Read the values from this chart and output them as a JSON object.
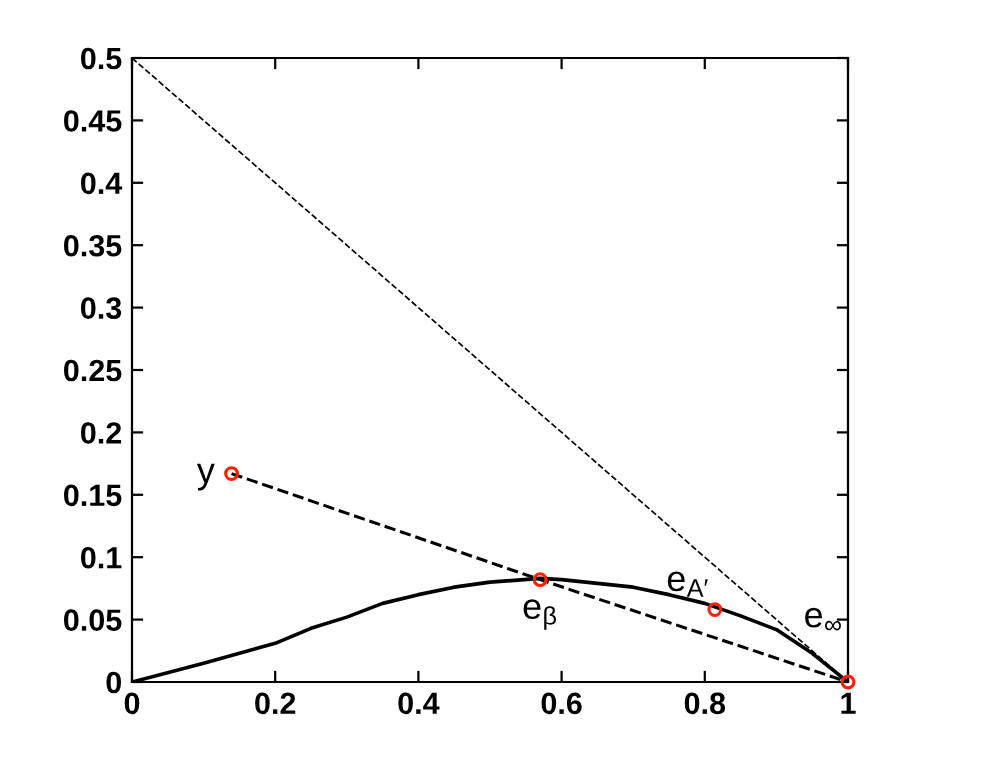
{
  "chart_data": {
    "type": "line",
    "xlim": [
      0,
      1
    ],
    "ylim": [
      0,
      0.5
    ],
    "xticks": [
      0,
      0.2,
      0.4,
      0.6,
      0.8,
      1
    ],
    "yticks": [
      0,
      0.05,
      0.1,
      0.15,
      0.2,
      0.25,
      0.3,
      0.35,
      0.4,
      0.45,
      0.5
    ],
    "grid": false,
    "legend": false,
    "series": [
      {
        "color": "#000000",
        "line_style": "solid",
        "marker": "none",
        "x": [
          0,
          0.1,
          0.2,
          0.25,
          0.3,
          0.35,
          0.4,
          0.45,
          0.5,
          0.57,
          0.6,
          0.65,
          0.7,
          0.75,
          0.8,
          0.85,
          0.9,
          0.95,
          1
        ],
        "values": [
          0,
          0.015,
          0.031,
          0.043,
          0.052,
          0.063,
          0.07,
          0.076,
          0.08,
          0.083,
          0.082,
          0.079,
          0.076,
          0.07,
          0.063,
          0.053,
          0.042,
          0.023,
          0
        ]
      },
      {
        "color": "#000000",
        "line_style": "dashed",
        "marker": "none",
        "x": [
          0.139,
          0.57,
          1
        ],
        "values": [
          0.167,
          0.082,
          0
        ]
      },
      {
        "color": "#000000",
        "line_style": "dashed",
        "marker": "none",
        "x": [
          0,
          1
        ],
        "values": [
          0.5,
          0
        ]
      },
      {
        "type": "scatter",
        "color": "#ff2000",
        "marker": "circle",
        "x": [
          0.139,
          0.57,
          0.814,
          1
        ],
        "values": [
          0.167,
          0.082,
          0.058,
          0
        ]
      }
    ],
    "annotations": [
      {
        "text": "y",
        "x": 0.139,
        "y": 0.167
      },
      {
        "text": "e$_{β}$",
        "x": 0.57,
        "y": 0.082
      },
      {
        "text": "e$_{A′}$",
        "x": 0.814,
        "y": 0.058
      },
      {
        "text": "e$_{∞}$",
        "x": 1,
        "y": 0
      }
    ]
  }
}
